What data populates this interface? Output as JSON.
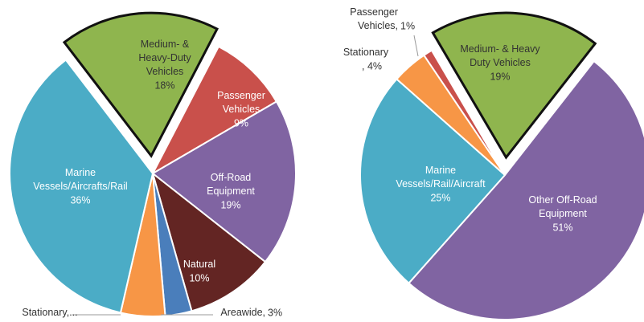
{
  "chart_data": [
    {
      "type": "pie",
      "categories": [
        "Medium- &\nHeavy-Duty\nVehicles",
        "Passenger\nVehicles",
        "Off-Road\nEquipment",
        "Natural",
        "Areawide,",
        "Stationary,...",
        "Marine\nVessels/Aircrafts/Rail"
      ],
      "values": [
        18,
        9,
        19,
        10,
        3,
        5,
        36
      ],
      "value_labels": [
        "18%",
        "9%",
        "19%",
        "10%",
        "3%",
        null,
        "36%"
      ],
      "colors": [
        "#8fb54e",
        "#c9504b",
        "#8064a2",
        "#632523",
        "#4a7ebb",
        "#f79646",
        "#4bacc6"
      ]
    },
    {
      "type": "pie",
      "categories": [
        "Medium- & Heavy\nDuty Vehicles",
        "Other Off-Road\nEquipment",
        "Marine\nVessels/Rail/Aircraft",
        "Stationary",
        "Passenger\nVehicles,"
      ],
      "values": [
        19,
        51,
        25,
        4,
        1
      ],
      "value_labels": [
        "19%",
        "51%",
        "25%",
        ", 4%",
        "1%"
      ],
      "colors": [
        "#8fb54e",
        "#8064a2",
        "#4bacc6",
        "#f79646",
        "#c9504b"
      ]
    }
  ]
}
